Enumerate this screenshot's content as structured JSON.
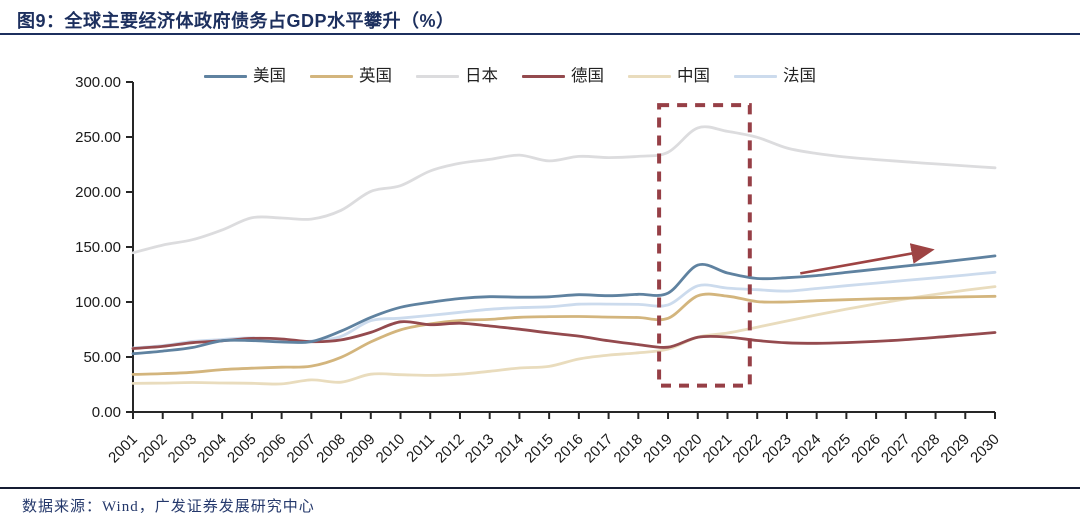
{
  "page": {
    "title": "图9：全球主要经济体政府债务占GDP水平攀升（%）",
    "footer": "数据来源：Wind，广发证券发展研究中心"
  },
  "style_colors": {
    "title_navy": "#1c2f5e",
    "axis": "#262626",
    "tick_label": "#1a1a1a",
    "highlight_box": "#963f46",
    "trend_arrow": "#9e4343"
  },
  "chart_data": {
    "type": "line",
    "title": "全球主要经济体政府债务占GDP水平攀升（%）",
    "xlabel": "",
    "ylabel": "",
    "ylim": [
      0,
      300
    ],
    "yticks": [
      0,
      50,
      100,
      150,
      200,
      250,
      300
    ],
    "ytick_decimals": 2,
    "grid": false,
    "legend_position": "top",
    "x": [
      2001,
      2002,
      2003,
      2004,
      2005,
      2006,
      2007,
      2008,
      2009,
      2010,
      2011,
      2012,
      2013,
      2014,
      2015,
      2016,
      2017,
      2018,
      2019,
      2020,
      2021,
      2022,
      2023,
      2024,
      2025,
      2026,
      2027,
      2028,
      2029,
      2030
    ],
    "series": [
      {
        "name": "美国",
        "color": "#5f82a0",
        "values": [
          53.0,
          55.4,
          58.6,
          64.8,
          64.9,
          63.6,
          64.0,
          73.5,
          86.0,
          95.2,
          99.7,
          103.2,
          104.8,
          104.4,
          104.7,
          106.6,
          105.7,
          107.0,
          108.1,
          133.5,
          126.4,
          121.4,
          122.1,
          124.0,
          126.9,
          129.8,
          132.7,
          135.6,
          138.7,
          141.9
        ]
      },
      {
        "name": "英国",
        "color": "#d3b57d",
        "values": [
          34.2,
          34.9,
          36.1,
          38.5,
          39.8,
          40.7,
          41.7,
          49.7,
          63.7,
          74.6,
          80.1,
          83.2,
          84.2,
          86.1,
          86.7,
          86.8,
          86.3,
          85.9,
          85.2,
          105.6,
          105.3,
          100.4,
          100.0,
          101.2,
          102.1,
          102.9,
          103.5,
          104.1,
          104.7,
          105.2
        ]
      },
      {
        "name": "日本",
        "color": "#dcdcde",
        "values": [
          144.7,
          151.7,
          156.6,
          165.5,
          176.6,
          176.4,
          175.4,
          183.4,
          200.5,
          205.7,
          219.1,
          226.1,
          229.6,
          233.5,
          228.3,
          232.4,
          231.3,
          232.4,
          236.1,
          258.3,
          255.1,
          249.7,
          240.0,
          235.0,
          231.7,
          229.5,
          227.5,
          225.5,
          223.7,
          222.0
        ]
      },
      {
        "name": "德国",
        "color": "#944a4e",
        "values": [
          57.7,
          59.6,
          63.0,
          64.7,
          66.9,
          66.4,
          63.9,
          65.5,
          72.4,
          82.0,
          79.4,
          80.7,
          78.2,
          75.3,
          71.9,
          69.0,
          64.7,
          61.3,
          58.9,
          68.0,
          68.1,
          65.0,
          62.9,
          62.5,
          63.1,
          64.2,
          65.8,
          67.8,
          70.0,
          72.3
        ]
      },
      {
        "name": "中国",
        "color": "#e9dcbd",
        "values": [
          26.0,
          26.3,
          26.8,
          26.4,
          26.1,
          25.5,
          29.2,
          27.1,
          34.4,
          33.9,
          33.3,
          34.4,
          37.0,
          40.0,
          41.5,
          48.2,
          51.7,
          53.8,
          57.1,
          68.1,
          71.8,
          77.1,
          82.7,
          88.3,
          93.5,
          98.3,
          102.8,
          106.9,
          110.6,
          114.0
        ]
      },
      {
        "name": "法国",
        "color": "#ccdbed",
        "values": [
          58.2,
          60.3,
          64.2,
          65.9,
          67.4,
          64.6,
          64.5,
          68.8,
          83.0,
          85.3,
          87.8,
          90.6,
          93.4,
          94.9,
          95.6,
          98.0,
          98.1,
          97.8,
          97.4,
          114.7,
          112.6,
          111.2,
          109.9,
          112.3,
          114.8,
          117.2,
          119.6,
          122.0,
          124.5,
          127.0
        ]
      }
    ],
    "annotations": {
      "dashed_box": {
        "x0_year": 2018.7,
        "x1_year": 2021.75,
        "y0_value": 24,
        "y1_value": 279,
        "color": "#963f46"
      },
      "trend_arrow": {
        "x0_year": 2023.45,
        "y0_value": 126,
        "x1_year": 2027.8,
        "y1_value": 147,
        "color": "#9e4343"
      }
    }
  }
}
